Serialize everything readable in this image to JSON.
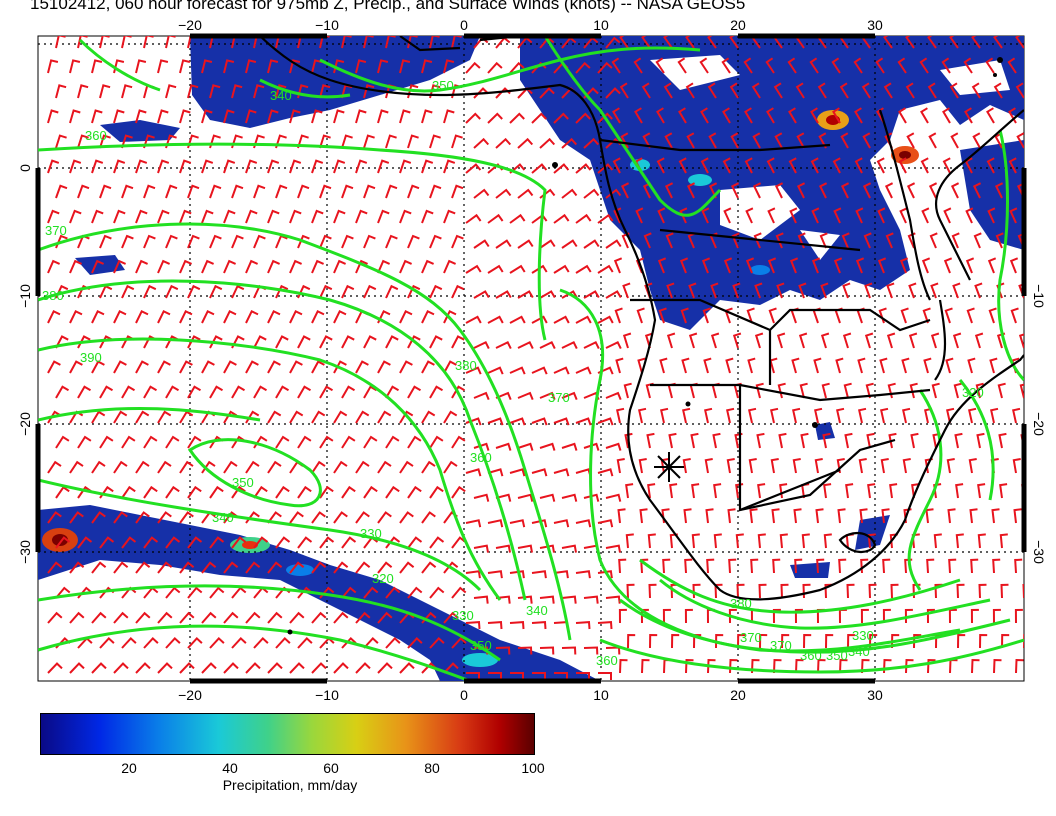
{
  "title": "15102412, 060 hour forecast for 975mb Z, Precip., and Surface Winds (knots) -- NASA GEOS5",
  "map": {
    "lon_ticks_top": [
      "−20",
      "−10",
      "0",
      "10",
      "20",
      "30"
    ],
    "lon_ticks_bottom": [
      "−20",
      "−10",
      "0",
      "10",
      "20",
      "30"
    ],
    "lat_ticks_left": [
      "0",
      "−10",
      "−20",
      "−30"
    ],
    "lat_ticks_right": [
      "−10",
      "−20",
      "−30"
    ],
    "contour_labels": [
      "340",
      "350",
      "360",
      "370",
      "380",
      "390",
      "380",
      "370",
      "360",
      "350",
      "340",
      "330",
      "320",
      "330",
      "340",
      "350",
      "360",
      "370",
      "380",
      "370",
      "360",
      "350",
      "340",
      "330",
      "320"
    ],
    "colors": {
      "contour": "#22e022",
      "wind_barb": "#e8141e",
      "coast": "#000000",
      "precip_base": "#1630a8"
    },
    "marker": "asterisk"
  },
  "colorbar": {
    "ticks": [
      "20",
      "40",
      "60",
      "80",
      "100"
    ],
    "label": "Precipitation, mm/day"
  }
}
